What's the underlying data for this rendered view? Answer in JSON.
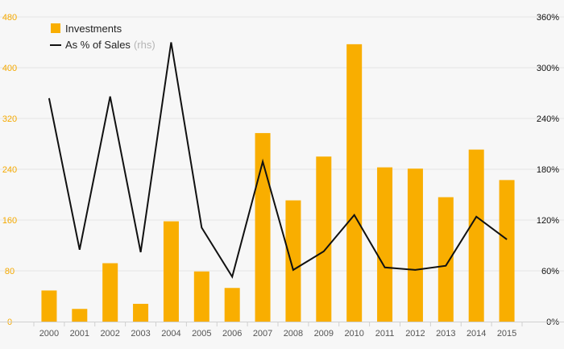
{
  "chart_data": {
    "type": "bar",
    "categories": [
      "2000",
      "2001",
      "2002",
      "2003",
      "2004",
      "2005",
      "2006",
      "2007",
      "2008",
      "2009",
      "2010",
      "2011",
      "2012",
      "2013",
      "2014",
      "2015"
    ],
    "series": [
      {
        "name": "Investments",
        "type": "bar",
        "axis": "left",
        "color": "#f9ae00",
        "values": [
          49,
          20,
          92,
          28,
          158,
          79,
          53,
          297,
          191,
          260,
          437,
          243,
          241,
          196,
          271,
          223
        ]
      },
      {
        "name": "As % of Sales",
        "name_suffix": "(rhs)",
        "type": "line",
        "axis": "right",
        "color": "#111111",
        "values": [
          264,
          85,
          266,
          82,
          330,
          111,
          53,
          189,
          61,
          83,
          126,
          64,
          61,
          66,
          124,
          97
        ]
      }
    ],
    "yleft": {
      "ylim": [
        0,
        480
      ],
      "ticks": [
        "0",
        "80",
        "160",
        "240",
        "320",
        "400",
        "480"
      ],
      "tick_values": [
        0,
        80,
        160,
        240,
        320,
        400,
        480
      ],
      "color": "#f5a900"
    },
    "yright": {
      "ylim": [
        0,
        360
      ],
      "ticks": [
        "0%",
        "60%",
        "120%",
        "180%",
        "240%",
        "300%",
        "360%"
      ],
      "tick_values": [
        0,
        60,
        120,
        180,
        240,
        300,
        360
      ],
      "color": "#111111"
    },
    "grid": true,
    "legend_position": "top-left"
  }
}
